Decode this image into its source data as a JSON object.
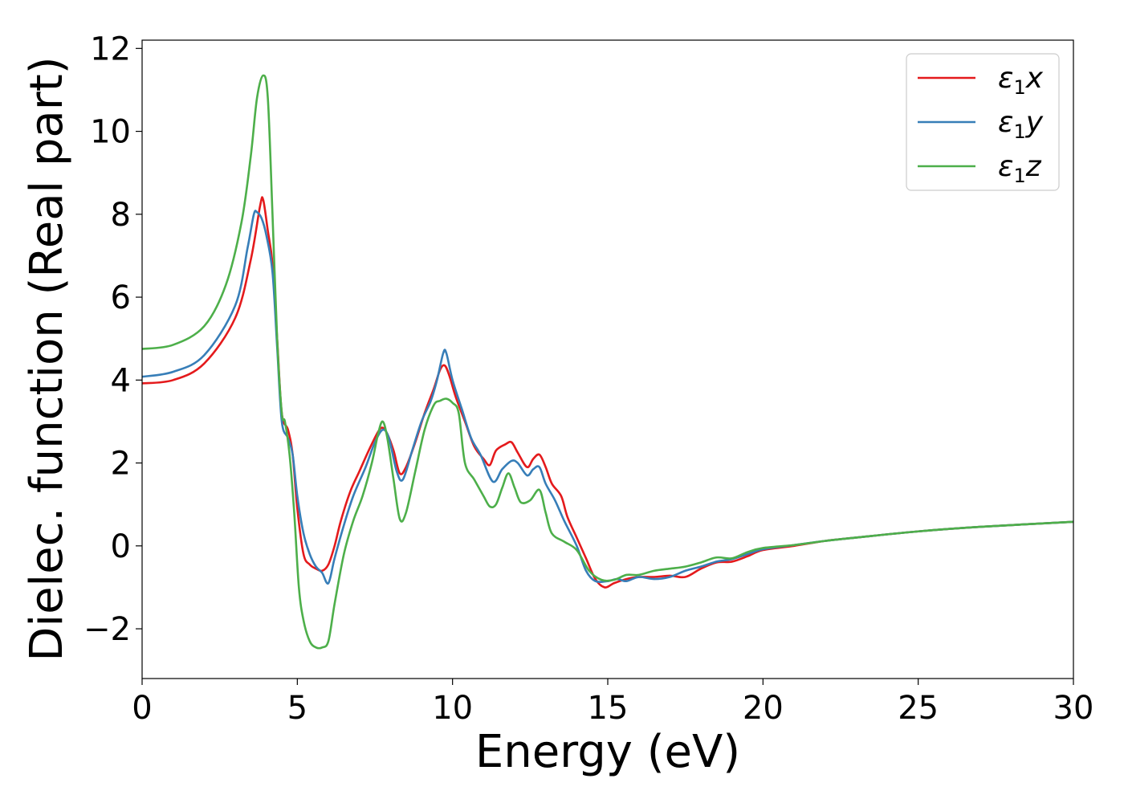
{
  "chart_data": {
    "type": "line",
    "xlabel": "Energy (eV)",
    "ylabel": "Dielec. function (Real part)",
    "xlim": [
      0,
      30
    ],
    "ylim": [
      -3.2,
      12.2
    ],
    "xticks": [
      0,
      5,
      10,
      15,
      20,
      25,
      30
    ],
    "xtick_labels": [
      "0",
      "5",
      "10",
      "15",
      "20",
      "25",
      "30"
    ],
    "yticks": [
      -2,
      0,
      2,
      4,
      6,
      8,
      10,
      12
    ],
    "ytick_labels": [
      "−2",
      "0",
      "2",
      "4",
      "6",
      "8",
      "10",
      "12"
    ],
    "grid": false,
    "legend_position": "top-right",
    "colors": {
      "x": "#e41a1c",
      "y": "#377eb8",
      "z": "#4daf4a"
    },
    "series": [
      {
        "name": "ε₁x",
        "legend_base": "ε",
        "legend_sub": "1",
        "legend_var": "x",
        "color": "#e41a1c",
        "points": [
          [
            0,
            3.92
          ],
          [
            1,
            4.0
          ],
          [
            2,
            4.4
          ],
          [
            3,
            5.5
          ],
          [
            3.5,
            6.9
          ],
          [
            3.8,
            8.2
          ],
          [
            3.9,
            8.35
          ],
          [
            4.05,
            7.6
          ],
          [
            4.2,
            6.8
          ],
          [
            4.35,
            5.0
          ],
          [
            4.5,
            3.2
          ],
          [
            4.7,
            2.8
          ],
          [
            4.85,
            2.2
          ],
          [
            5.0,
            0.9
          ],
          [
            5.2,
            -0.2
          ],
          [
            5.4,
            -0.45
          ],
          [
            5.6,
            -0.55
          ],
          [
            5.8,
            -0.6
          ],
          [
            6.0,
            -0.45
          ],
          [
            6.2,
            0.0
          ],
          [
            6.4,
            0.6
          ],
          [
            6.7,
            1.3
          ],
          [
            7.0,
            1.8
          ],
          [
            7.3,
            2.3
          ],
          [
            7.6,
            2.75
          ],
          [
            7.75,
            2.85
          ],
          [
            7.9,
            2.7
          ],
          [
            8.1,
            2.3
          ],
          [
            8.3,
            1.75
          ],
          [
            8.5,
            1.9
          ],
          [
            8.8,
            2.5
          ],
          [
            9.1,
            3.2
          ],
          [
            9.4,
            3.8
          ],
          [
            9.6,
            4.25
          ],
          [
            9.75,
            4.35
          ],
          [
            9.9,
            4.1
          ],
          [
            10.1,
            3.6
          ],
          [
            10.4,
            3.0
          ],
          [
            10.7,
            2.4
          ],
          [
            11.0,
            2.1
          ],
          [
            11.2,
            1.95
          ],
          [
            11.4,
            2.3
          ],
          [
            11.7,
            2.45
          ],
          [
            11.9,
            2.5
          ],
          [
            12.1,
            2.25
          ],
          [
            12.4,
            1.9
          ],
          [
            12.6,
            2.1
          ],
          [
            12.8,
            2.2
          ],
          [
            13.0,
            1.9
          ],
          [
            13.2,
            1.5
          ],
          [
            13.5,
            1.2
          ],
          [
            13.7,
            0.7
          ],
          [
            14.0,
            0.2
          ],
          [
            14.3,
            -0.3
          ],
          [
            14.6,
            -0.8
          ],
          [
            14.9,
            -1.0
          ],
          [
            15.2,
            -0.9
          ],
          [
            15.6,
            -0.8
          ],
          [
            16.0,
            -0.75
          ],
          [
            16.5,
            -0.75
          ],
          [
            17.0,
            -0.72
          ],
          [
            17.5,
            -0.75
          ],
          [
            18.0,
            -0.55
          ],
          [
            18.5,
            -0.4
          ],
          [
            19.0,
            -0.38
          ],
          [
            19.5,
            -0.25
          ],
          [
            20.0,
            -0.1
          ],
          [
            21.0,
            0.0
          ],
          [
            22.0,
            0.12
          ],
          [
            23.0,
            0.2
          ],
          [
            25.0,
            0.35
          ],
          [
            27.0,
            0.46
          ],
          [
            30.0,
            0.58
          ]
        ]
      },
      {
        "name": "ε₁y",
        "legend_base": "ε",
        "legend_sub": "1",
        "legend_var": "y",
        "color": "#377eb8",
        "points": [
          [
            0,
            4.08
          ],
          [
            1,
            4.2
          ],
          [
            2,
            4.6
          ],
          [
            3,
            5.8
          ],
          [
            3.4,
            7.2
          ],
          [
            3.6,
            8.0
          ],
          [
            3.7,
            8.05
          ],
          [
            3.85,
            7.9
          ],
          [
            4.0,
            7.5
          ],
          [
            4.2,
            6.6
          ],
          [
            4.35,
            4.8
          ],
          [
            4.5,
            3.0
          ],
          [
            4.7,
            2.6
          ],
          [
            4.85,
            2.2
          ],
          [
            5.0,
            1.2
          ],
          [
            5.2,
            0.3
          ],
          [
            5.4,
            -0.2
          ],
          [
            5.6,
            -0.5
          ],
          [
            5.8,
            -0.65
          ],
          [
            6.0,
            -0.9
          ],
          [
            6.2,
            -0.3
          ],
          [
            6.5,
            0.5
          ],
          [
            6.8,
            1.2
          ],
          [
            7.2,
            1.9
          ],
          [
            7.5,
            2.5
          ],
          [
            7.75,
            2.8
          ],
          [
            7.95,
            2.6
          ],
          [
            8.2,
            1.8
          ],
          [
            8.4,
            1.6
          ],
          [
            8.7,
            2.3
          ],
          [
            9.0,
            3.0
          ],
          [
            9.3,
            3.5
          ],
          [
            9.5,
            4.0
          ],
          [
            9.7,
            4.65
          ],
          [
            9.8,
            4.65
          ],
          [
            10.0,
            4.0
          ],
          [
            10.3,
            3.3
          ],
          [
            10.6,
            2.6
          ],
          [
            10.9,
            2.2
          ],
          [
            11.3,
            1.55
          ],
          [
            11.6,
            1.85
          ],
          [
            11.9,
            2.05
          ],
          [
            12.1,
            2.0
          ],
          [
            12.4,
            1.7
          ],
          [
            12.6,
            1.85
          ],
          [
            12.8,
            1.9
          ],
          [
            13.0,
            1.5
          ],
          [
            13.3,
            1.1
          ],
          [
            13.6,
            0.6
          ],
          [
            14.0,
            0.0
          ],
          [
            14.3,
            -0.6
          ],
          [
            14.6,
            -0.85
          ],
          [
            15.0,
            -0.85
          ],
          [
            15.3,
            -0.8
          ],
          [
            15.6,
            -0.85
          ],
          [
            16.0,
            -0.75
          ],
          [
            16.5,
            -0.8
          ],
          [
            17.0,
            -0.75
          ],
          [
            17.5,
            -0.6
          ],
          [
            18.0,
            -0.5
          ],
          [
            18.5,
            -0.38
          ],
          [
            19.0,
            -0.32
          ],
          [
            19.5,
            -0.2
          ],
          [
            20.0,
            -0.08
          ],
          [
            21.0,
            0.02
          ],
          [
            22.0,
            0.12
          ],
          [
            23.0,
            0.2
          ],
          [
            25.0,
            0.35
          ],
          [
            27.0,
            0.46
          ],
          [
            30.0,
            0.58
          ]
        ]
      },
      {
        "name": "ε₁z",
        "legend_base": "ε",
        "legend_sub": "1",
        "legend_var": "z",
        "color": "#4daf4a",
        "points": [
          [
            0,
            4.75
          ],
          [
            1,
            4.85
          ],
          [
            2,
            5.3
          ],
          [
            2.7,
            6.3
          ],
          [
            3.2,
            7.8
          ],
          [
            3.5,
            9.4
          ],
          [
            3.7,
            10.8
          ],
          [
            3.9,
            11.35
          ],
          [
            4.05,
            10.8
          ],
          [
            4.2,
            8.0
          ],
          [
            4.35,
            5.0
          ],
          [
            4.5,
            3.2
          ],
          [
            4.6,
            3.0
          ],
          [
            4.75,
            2.2
          ],
          [
            4.9,
            0.8
          ],
          [
            5.05,
            -1.0
          ],
          [
            5.2,
            -1.8
          ],
          [
            5.4,
            -2.3
          ],
          [
            5.6,
            -2.45
          ],
          [
            5.8,
            -2.45
          ],
          [
            6.0,
            -2.3
          ],
          [
            6.2,
            -1.4
          ],
          [
            6.5,
            -0.2
          ],
          [
            6.8,
            0.6
          ],
          [
            7.1,
            1.2
          ],
          [
            7.4,
            2.0
          ],
          [
            7.6,
            2.7
          ],
          [
            7.75,
            3.0
          ],
          [
            7.9,
            2.6
          ],
          [
            8.1,
            1.6
          ],
          [
            8.3,
            0.65
          ],
          [
            8.5,
            0.8
          ],
          [
            8.8,
            1.8
          ],
          [
            9.1,
            2.8
          ],
          [
            9.4,
            3.4
          ],
          [
            9.6,
            3.5
          ],
          [
            9.8,
            3.55
          ],
          [
            10.0,
            3.45
          ],
          [
            10.2,
            3.2
          ],
          [
            10.4,
            2.0
          ],
          [
            10.7,
            1.6
          ],
          [
            11.0,
            1.2
          ],
          [
            11.2,
            0.95
          ],
          [
            11.4,
            1.0
          ],
          [
            11.6,
            1.4
          ],
          [
            11.8,
            1.75
          ],
          [
            12.0,
            1.4
          ],
          [
            12.2,
            1.05
          ],
          [
            12.5,
            1.1
          ],
          [
            12.8,
            1.35
          ],
          [
            13.0,
            0.8
          ],
          [
            13.2,
            0.3
          ],
          [
            13.6,
            0.1
          ],
          [
            14.0,
            -0.1
          ],
          [
            14.4,
            -0.6
          ],
          [
            14.8,
            -0.82
          ],
          [
            15.2,
            -0.82
          ],
          [
            15.6,
            -0.7
          ],
          [
            16.0,
            -0.7
          ],
          [
            16.5,
            -0.6
          ],
          [
            17.0,
            -0.55
          ],
          [
            17.5,
            -0.5
          ],
          [
            18.0,
            -0.4
          ],
          [
            18.5,
            -0.28
          ],
          [
            19.0,
            -0.3
          ],
          [
            19.5,
            -0.15
          ],
          [
            20.0,
            -0.05
          ],
          [
            21.0,
            0.02
          ],
          [
            22.0,
            0.12
          ],
          [
            23.0,
            0.2
          ],
          [
            25.0,
            0.35
          ],
          [
            27.0,
            0.46
          ],
          [
            30.0,
            0.58
          ]
        ]
      }
    ]
  }
}
